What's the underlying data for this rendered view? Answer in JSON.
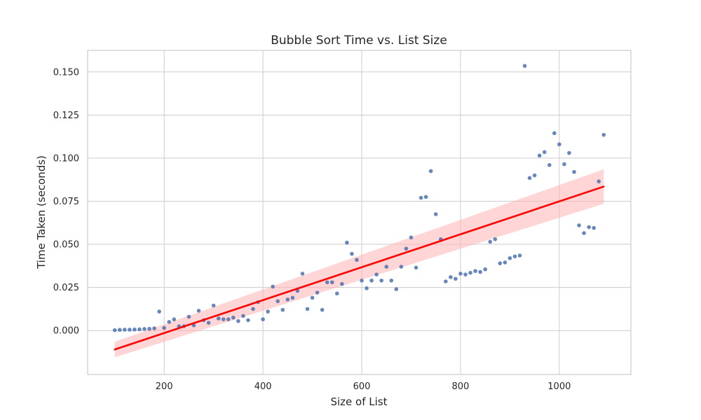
{
  "chart_data": {
    "type": "scatter",
    "title": "Bubble Sort Time vs. List Size",
    "xlabel": "Size of List",
    "ylabel": "Time Taken (seconds)",
    "xlim": [
      45,
      1145
    ],
    "ylim": [
      -0.0255,
      0.1625
    ],
    "xticks": [
      200,
      400,
      600,
      800,
      1000
    ],
    "yticks": [
      0.0,
      0.025,
      0.05,
      0.075,
      0.1,
      0.125,
      0.15
    ],
    "ytick_labels": [
      "0.000",
      "0.025",
      "0.050",
      "0.075",
      "0.100",
      "0.125",
      "0.150"
    ],
    "grid": true,
    "colors": {
      "points": "#4c72b0",
      "fit_line": "#ff0000",
      "ci_band": "#ffb3b3"
    },
    "points": {
      "x": [
        100,
        110,
        120,
        130,
        140,
        150,
        160,
        170,
        180,
        190,
        200,
        210,
        220,
        230,
        240,
        250,
        260,
        270,
        280,
        290,
        300,
        310,
        320,
        330,
        340,
        350,
        360,
        370,
        380,
        390,
        400,
        410,
        420,
        430,
        440,
        450,
        460,
        470,
        480,
        490,
        500,
        510,
        520,
        530,
        540,
        550,
        560,
        570,
        580,
        590,
        600,
        610,
        620,
        630,
        640,
        650,
        660,
        670,
        680,
        690,
        700,
        710,
        720,
        730,
        740,
        750,
        760,
        770,
        780,
        790,
        800,
        810,
        820,
        830,
        840,
        850,
        860,
        870,
        880,
        890,
        900,
        910,
        920,
        930,
        940,
        950,
        960,
        970,
        980,
        990,
        1000,
        1010,
        1020,
        1030,
        1040,
        1050,
        1060,
        1070,
        1080,
        1090
      ],
      "y": [
        0.0002,
        0.0004,
        0.0005,
        0.0005,
        0.0006,
        0.0007,
        0.0009,
        0.001,
        0.0013,
        0.011,
        0.0015,
        0.005,
        0.0065,
        0.0025,
        0.0025,
        0.008,
        0.003,
        0.0115,
        0.006,
        0.0045,
        0.0145,
        0.007,
        0.0065,
        0.0065,
        0.0075,
        0.0055,
        0.0085,
        0.006,
        0.0125,
        0.0165,
        0.0065,
        0.011,
        0.0255,
        0.017,
        0.012,
        0.018,
        0.019,
        0.023,
        0.033,
        0.0125,
        0.019,
        0.022,
        0.012,
        0.028,
        0.028,
        0.0215,
        0.027,
        0.051,
        0.0445,
        0.041,
        0.029,
        0.0245,
        0.029,
        0.0325,
        0.029,
        0.037,
        0.029,
        0.024,
        0.037,
        0.0475,
        0.054,
        0.0365,
        0.077,
        0.0775,
        0.0925,
        0.0675,
        0.053,
        0.0285,
        0.031,
        0.03,
        0.033,
        0.0325,
        0.0335,
        0.0345,
        0.034,
        0.0355,
        0.0515,
        0.053,
        0.039,
        0.0395,
        0.042,
        0.043,
        0.0435,
        0.1535,
        0.0885,
        0.09,
        0.1015,
        0.1035,
        0.096,
        0.1145,
        0.108,
        0.0965,
        0.103,
        0.092,
        0.061,
        0.0565,
        0.06,
        0.0595,
        0.0865,
        0.1135
      ]
    },
    "fit": {
      "x": [
        100,
        1090
      ],
      "y": [
        -0.011,
        0.0835
      ],
      "ci_lower": [
        -0.0155,
        0.0735
      ],
      "ci_upper": [
        -0.0065,
        0.0935
      ]
    }
  }
}
